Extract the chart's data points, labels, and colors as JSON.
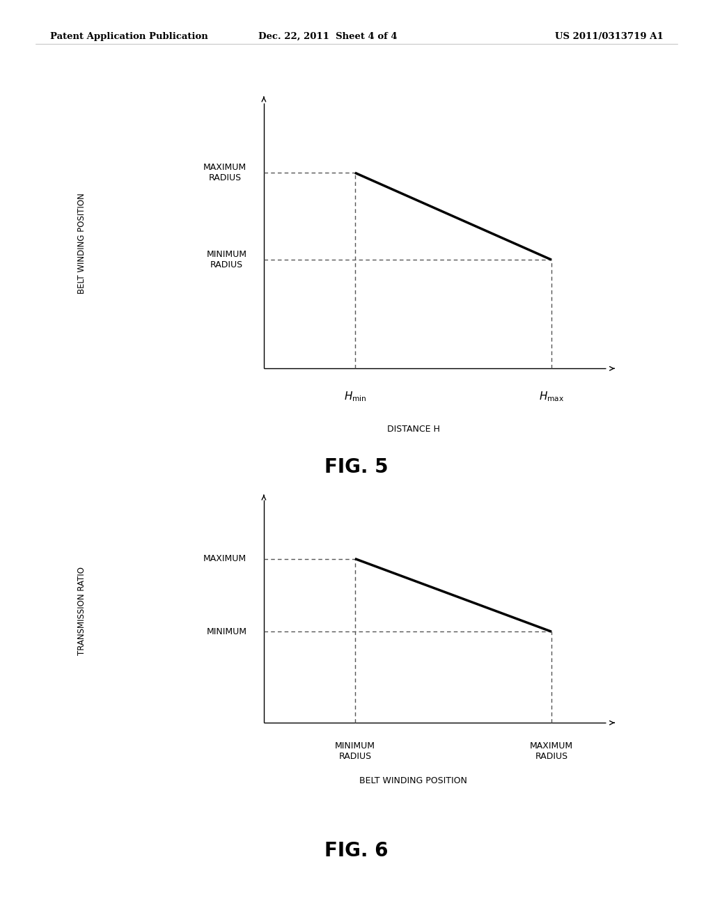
{
  "bg_color": "#ffffff",
  "header_left": "Patent Application Publication",
  "header_center": "Dec. 22, 2011  Sheet 4 of 4",
  "header_right": "US 2011/0313719 A1",
  "fig5_title": "FIG. 5",
  "fig6_title": "FIG. 6",
  "fig5_ylabel": "BELT WINDING POSITION",
  "fig5_xlabel": "DISTANCE H",
  "fig5_y_label_max": "MAXIMUM\nRADIUS",
  "fig5_y_label_min": "MINIMUM\nRADIUS",
  "fig5_x_label_min": "H_min",
  "fig5_x_label_max": "H_max",
  "fig6_ylabel": "TRANSMISSION RATIO",
  "fig6_xlabel": "BELT WINDING POSITION",
  "fig6_y_label_max": "MAXIMUM",
  "fig6_y_label_min": "MINIMUM",
  "fig6_x_label_min": "MINIMUM\nRADIUS",
  "fig6_x_label_max": "MAXIMUM\nRADIUS",
  "line_color": "#000000",
  "dash_color": "#555555",
  "axis_color": "#000000",
  "text_color": "#000000",
  "header_fontsize": 9.5,
  "tick_label_fontsize": 9,
  "fig_label_fontsize": 20,
  "axis_label_fontsize": 9,
  "ylabel_fontsize": 8.5
}
